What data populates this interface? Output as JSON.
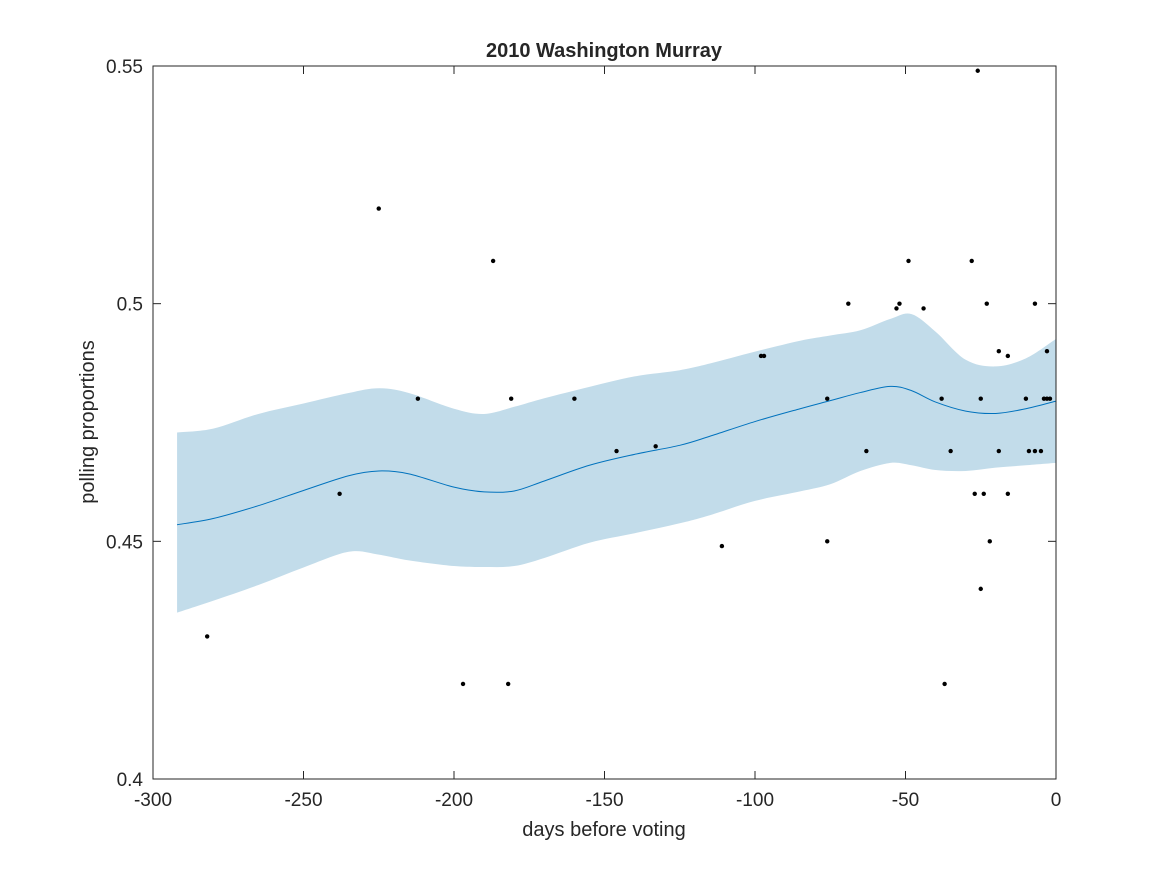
{
  "chart_data": {
    "type": "scatter",
    "title": "2010 Washington Murray",
    "xlabel": "days before voting",
    "ylabel": "polling proportions",
    "xlim": [
      -300,
      0
    ],
    "ylim": [
      0.4,
      0.55
    ],
    "x_ticks": [
      -300,
      -250,
      -200,
      -150,
      -100,
      -50,
      0
    ],
    "x_tick_labels": [
      "-300",
      "-250",
      "-200",
      "-150",
      "-100",
      "-50",
      "0"
    ],
    "y_ticks": [
      0.4,
      0.45,
      0.5,
      0.55
    ],
    "y_tick_labels": [
      "0.4",
      "0.45",
      "0.5",
      "0.55"
    ],
    "grid": false,
    "legend": "none",
    "colors": {
      "band": "#c2dcea",
      "trend": "#0072bd",
      "points": "#000000",
      "axes": "#262626"
    },
    "series": [
      {
        "type": "scatter",
        "points": [
          [
            -282,
            0.43
          ],
          [
            -238,
            0.46
          ],
          [
            -225,
            0.52
          ],
          [
            -212,
            0.48
          ],
          [
            -197,
            0.42
          ],
          [
            -187,
            0.509
          ],
          [
            -182,
            0.42
          ],
          [
            -181,
            0.48
          ],
          [
            -160,
            0.48
          ],
          [
            -146,
            0.469
          ],
          [
            -133,
            0.47
          ],
          [
            -111,
            0.449
          ],
          [
            -98,
            0.489
          ],
          [
            -97,
            0.489
          ],
          [
            -76,
            0.48
          ],
          [
            -76,
            0.45
          ],
          [
            -69,
            0.5
          ],
          [
            -63,
            0.469
          ],
          [
            -53,
            0.499
          ],
          [
            -52,
            0.5
          ],
          [
            -49,
            0.509
          ],
          [
            -44,
            0.499
          ],
          [
            -38,
            0.48
          ],
          [
            -37,
            0.42
          ],
          [
            -35,
            0.469
          ],
          [
            -28,
            0.509
          ],
          [
            -27,
            0.46
          ],
          [
            -26,
            0.549
          ],
          [
            -25,
            0.48
          ],
          [
            -25,
            0.44
          ],
          [
            -24,
            0.46
          ],
          [
            -23,
            0.5
          ],
          [
            -22,
            0.45
          ],
          [
            -19,
            0.49
          ],
          [
            -19,
            0.469
          ],
          [
            -16,
            0.489
          ],
          [
            -16,
            0.46
          ],
          [
            -10,
            0.48
          ],
          [
            -9,
            0.469
          ],
          [
            -7,
            0.5
          ],
          [
            -7,
            0.469
          ],
          [
            -5,
            0.469
          ],
          [
            -4,
            0.48
          ],
          [
            -3,
            0.49
          ],
          [
            -3,
            0.48
          ],
          [
            -2,
            0.48
          ]
        ]
      },
      {
        "type": "line",
        "x": [
          -292,
          -280,
          -265,
          -250,
          -235,
          -225,
          -215,
          -200,
          -190,
          -180,
          -170,
          -155,
          -140,
          -125,
          -115,
          -100,
          -85,
          -75,
          -65,
          -55,
          -48,
          -40,
          -30,
          -20,
          -10,
          0
        ],
        "y": [
          0.4535,
          0.4548,
          0.4575,
          0.4607,
          0.4638,
          0.4648,
          0.4642,
          0.4614,
          0.4604,
          0.4606,
          0.4627,
          0.466,
          0.4683,
          0.4702,
          0.4721,
          0.4752,
          0.4779,
          0.4796,
          0.4813,
          0.4826,
          0.4817,
          0.4793,
          0.4774,
          0.4769,
          0.4779,
          0.4795
        ]
      },
      {
        "type": "area",
        "x": [
          -292,
          -280,
          -265,
          -250,
          -235,
          -225,
          -215,
          -200,
          -190,
          -180,
          -170,
          -155,
          -140,
          -125,
          -115,
          -100,
          -85,
          -75,
          -65,
          -55,
          -48,
          -40,
          -30,
          -20,
          -10,
          0
        ],
        "lower": [
          0.435,
          0.4375,
          0.4408,
          0.4445,
          0.4478,
          0.4472,
          0.446,
          0.4448,
          0.4446,
          0.4448,
          0.4465,
          0.4497,
          0.4517,
          0.4538,
          0.4555,
          0.4585,
          0.4605,
          0.462,
          0.4648,
          0.4665,
          0.466,
          0.465,
          0.4648,
          0.4655,
          0.466,
          0.4665
        ],
        "upper": [
          0.4729,
          0.4737,
          0.4768,
          0.479,
          0.4812,
          0.4822,
          0.4812,
          0.4779,
          0.4768,
          0.4783,
          0.4801,
          0.4825,
          0.4847,
          0.486,
          0.4874,
          0.4899,
          0.4922,
          0.4933,
          0.4944,
          0.4968,
          0.4978,
          0.4941,
          0.4882,
          0.4868,
          0.4885,
          0.4926
        ]
      }
    ]
  }
}
